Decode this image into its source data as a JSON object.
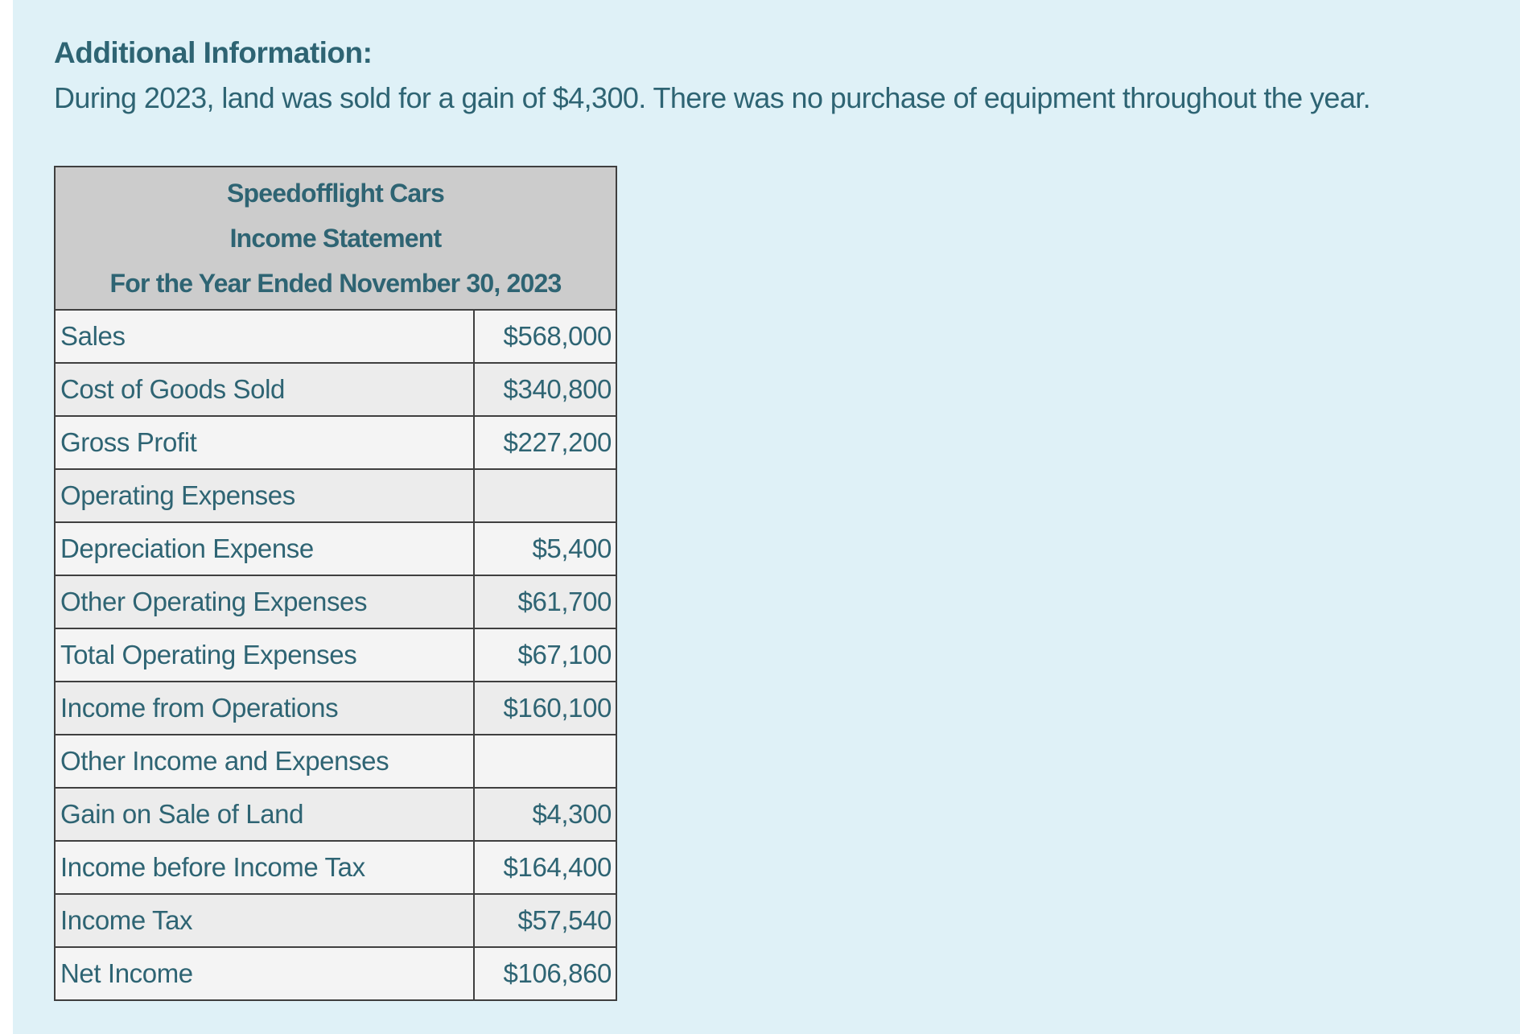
{
  "additional_info": {
    "heading": "Additional Information:",
    "text": "During 2023, land was sold for a gain of $4,300. There was no purchase of equipment throughout the year."
  },
  "statement": {
    "company": "Speedofflight Cars",
    "title": "Income Statement",
    "period": "For the Year Ended November 30, 2023",
    "rows": [
      {
        "label": "Sales",
        "value": "$568,000"
      },
      {
        "label": "Cost of Goods Sold",
        "value": "$340,800"
      },
      {
        "label": "Gross Profit",
        "value": "$227,200"
      },
      {
        "label": "Operating Expenses",
        "value": ""
      },
      {
        "label": "Depreciation Expense",
        "value": "$5,400"
      },
      {
        "label": "Other Operating Expenses",
        "value": "$61,700"
      },
      {
        "label": "Total Operating Expenses",
        "value": "$67,100"
      },
      {
        "label": "Income from Operations",
        "value": "$160,100"
      },
      {
        "label": "Other Income and Expenses",
        "value": ""
      },
      {
        "label": "Gain on Sale of Land",
        "value": "$4,300"
      },
      {
        "label": "Income before Income Tax",
        "value": "$164,400"
      },
      {
        "label": "Income Tax",
        "value": "$57,540"
      },
      {
        "label": "Net Income",
        "value": "$106,860"
      }
    ]
  },
  "colors": {
    "panel_background": "#DFF1F7",
    "text": "#2E6473",
    "header_background": "#CCCCCC",
    "row_light": "#F4F4F4",
    "row_dark": "#ECECEC",
    "border": "#3F3F3F"
  }
}
